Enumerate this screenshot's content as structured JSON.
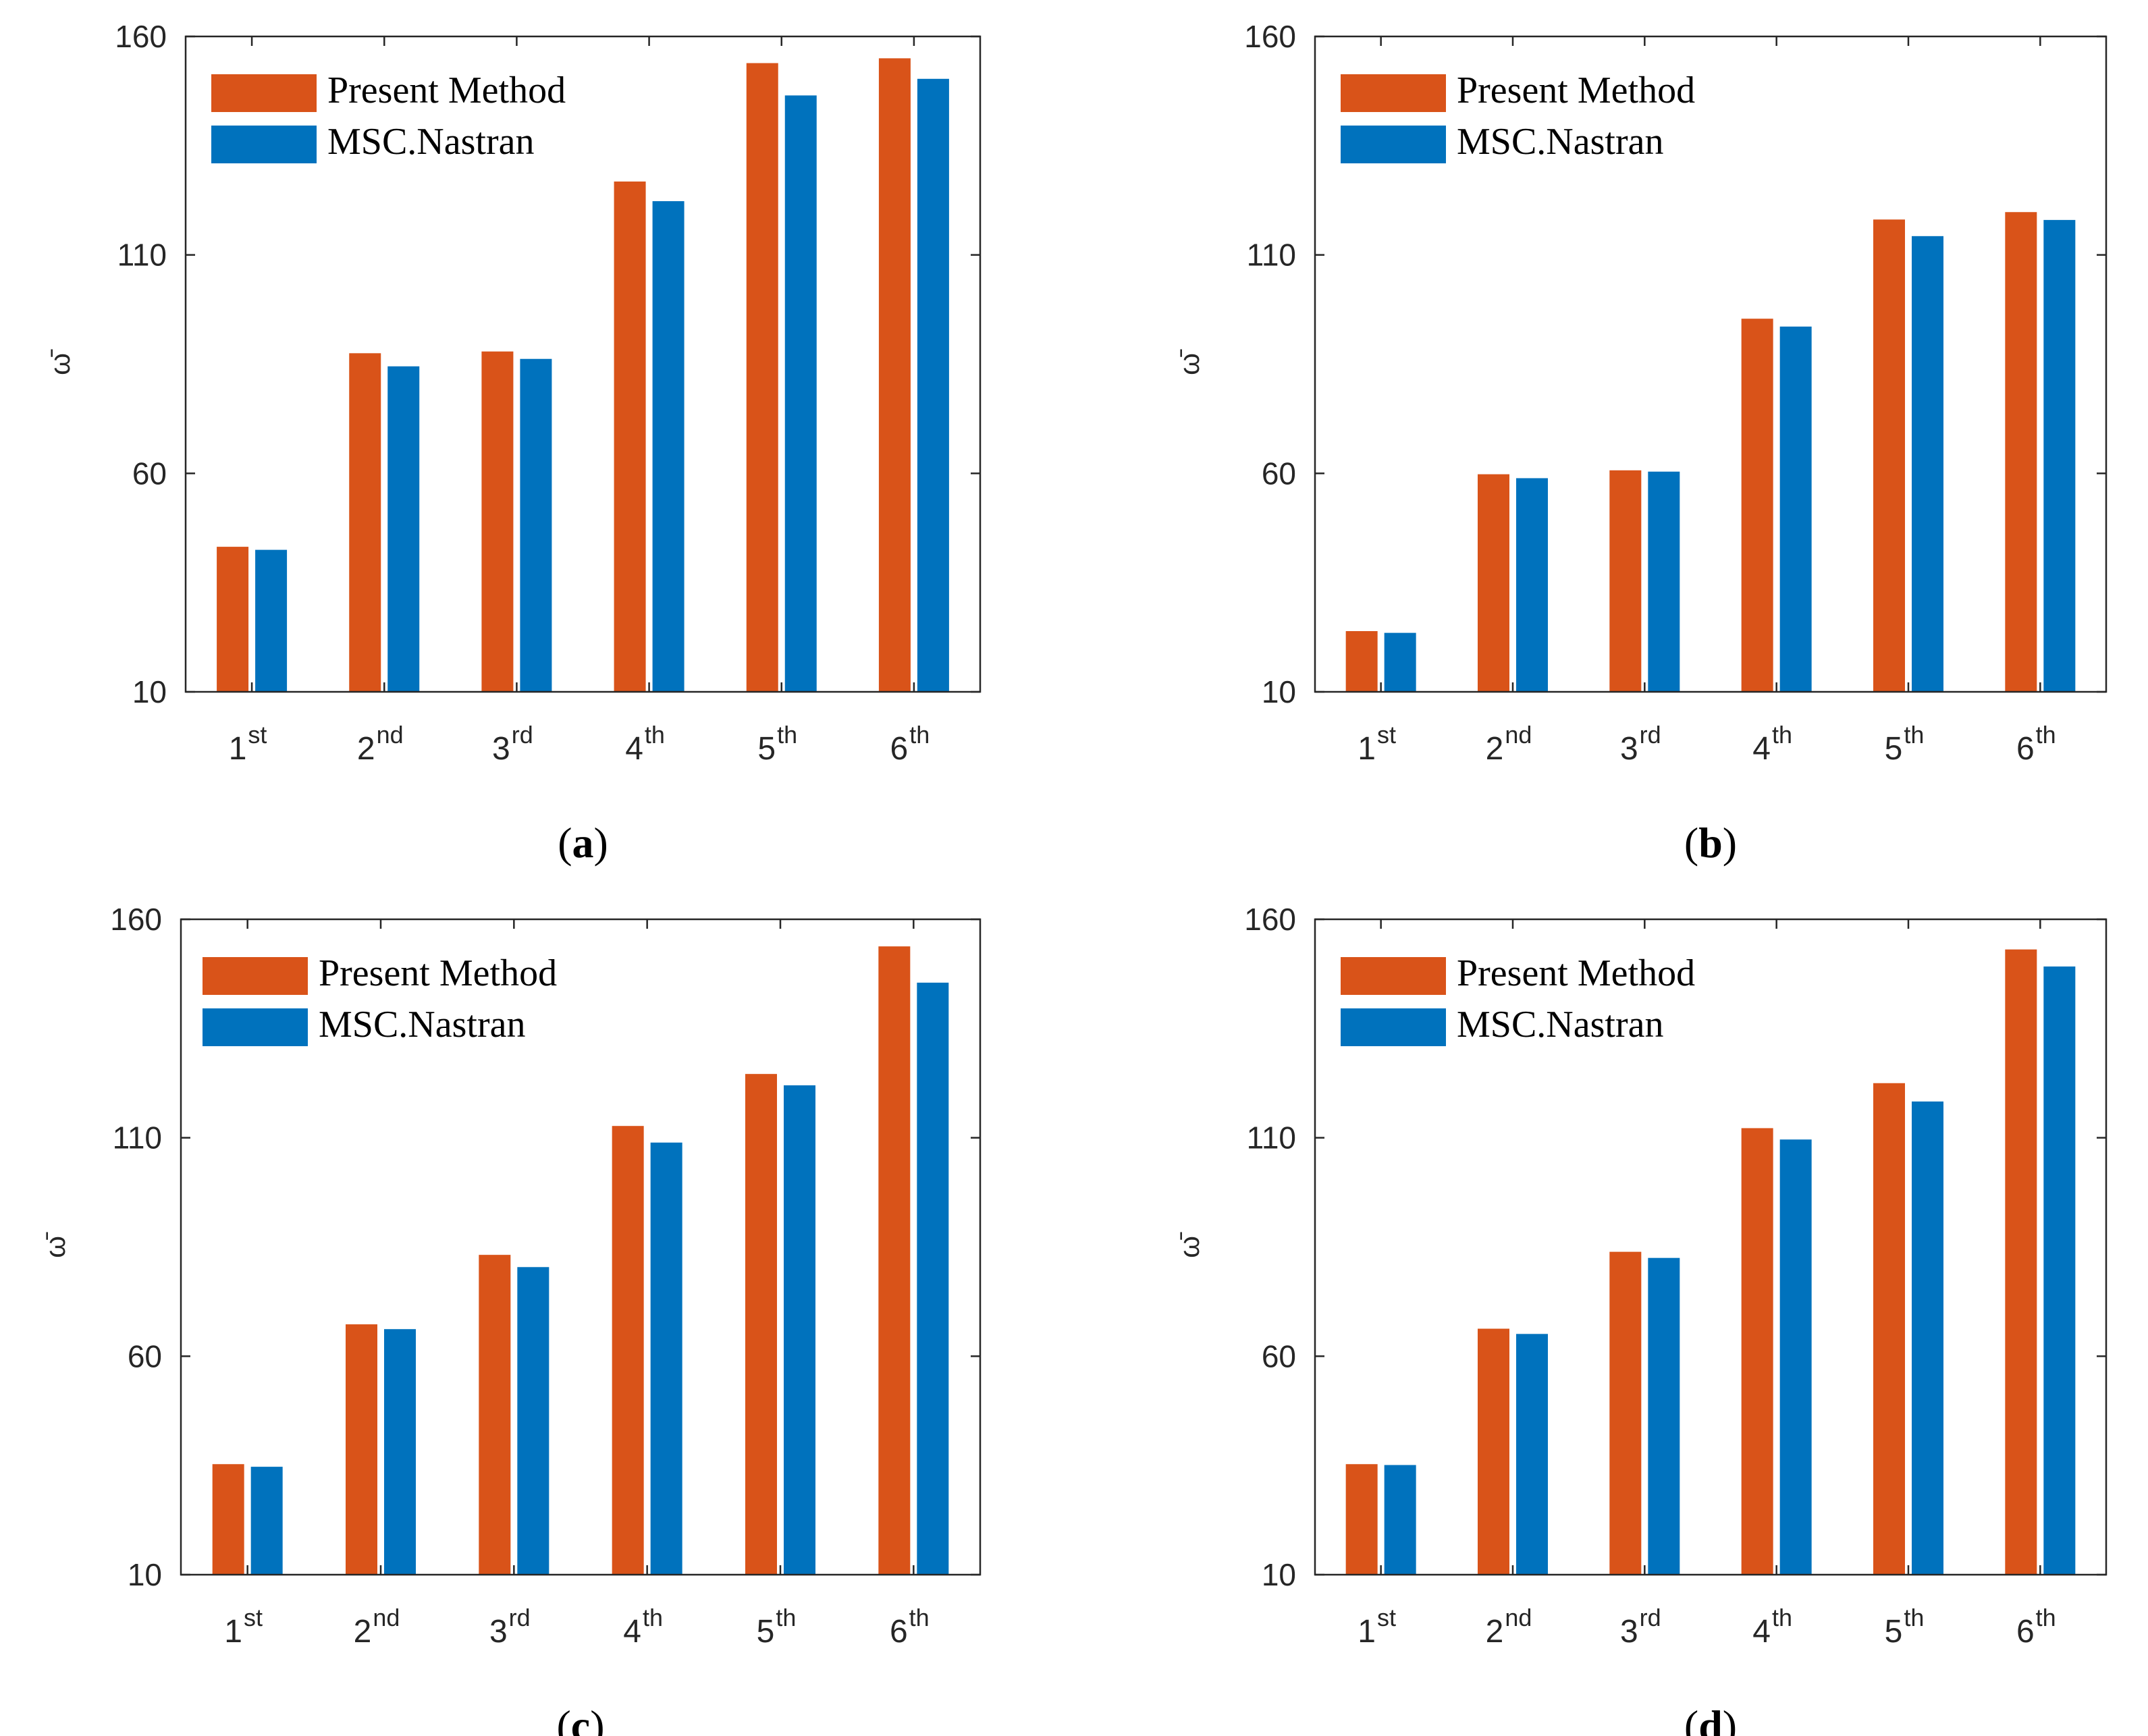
{
  "colors": {
    "present": "#d95319",
    "nastran": "#0072bd",
    "axis": "#262626"
  },
  "chart_data": [
    {
      "id": "a",
      "type": "bar",
      "panel_label": "a",
      "ylabel": "ω̄",
      "ylim": [
        10,
        160
      ],
      "yticks": [
        "10",
        "60",
        "110",
        "160"
      ],
      "categories": [
        {
          "base": "1",
          "sup": "st"
        },
        {
          "base": "2",
          "sup": "nd"
        },
        {
          "base": "3",
          "sup": "rd"
        },
        {
          "base": "4",
          "sup": "th"
        },
        {
          "base": "5",
          "sup": "th"
        },
        {
          "base": "6",
          "sup": "th"
        }
      ],
      "legend": [
        "Present Method",
        "MSC.Nastran"
      ],
      "legend_position": "top-left",
      "series": [
        {
          "name": "Present Method",
          "values": [
            43.2,
            87.5,
            87.9,
            126.8,
            153.9,
            155.0
          ]
        },
        {
          "name": "MSC.Nastran",
          "values": [
            42.5,
            84.5,
            86.2,
            122.3,
            146.5,
            150.3
          ]
        }
      ]
    },
    {
      "id": "b",
      "type": "bar",
      "panel_label": "b",
      "ylabel": "ω̄",
      "ylim": [
        10,
        160
      ],
      "yticks": [
        "10",
        "60",
        "110",
        "160"
      ],
      "categories": [
        {
          "base": "1",
          "sup": "st"
        },
        {
          "base": "2",
          "sup": "nd"
        },
        {
          "base": "3",
          "sup": "rd"
        },
        {
          "base": "4",
          "sup": "th"
        },
        {
          "base": "5",
          "sup": "th"
        },
        {
          "base": "6",
          "sup": "th"
        }
      ],
      "legend": [
        "Present Method",
        "MSC.Nastran"
      ],
      "legend_position": "top-left",
      "series": [
        {
          "name": "Present Method",
          "values": [
            23.9,
            59.8,
            60.7,
            95.4,
            118.1,
            119.8
          ]
        },
        {
          "name": "MSC.Nastran",
          "values": [
            23.5,
            58.9,
            60.4,
            93.6,
            114.3,
            118.0
          ]
        }
      ]
    },
    {
      "id": "c",
      "type": "bar",
      "panel_label": "c",
      "ylabel": "ω̄",
      "ylim": [
        10,
        160
      ],
      "yticks": [
        "10",
        "60",
        "110",
        "160"
      ],
      "categories": [
        {
          "base": "1",
          "sup": "st"
        },
        {
          "base": "2",
          "sup": "nd"
        },
        {
          "base": "3",
          "sup": "rd"
        },
        {
          "base": "4",
          "sup": "th"
        },
        {
          "base": "5",
          "sup": "th"
        },
        {
          "base": "6",
          "sup": "th"
        }
      ],
      "legend": [
        "Present Method",
        "MSC.Nastran"
      ],
      "legend_position": "top-left",
      "series": [
        {
          "name": "Present Method",
          "values": [
            35.3,
            67.3,
            83.2,
            112.7,
            124.6,
            153.8
          ]
        },
        {
          "name": "MSC.Nastran",
          "values": [
            34.7,
            66.2,
            80.4,
            108.9,
            122.0,
            145.5
          ]
        }
      ]
    },
    {
      "id": "d",
      "type": "bar",
      "panel_label": "d",
      "ylabel": "ω̄",
      "ylim": [
        10,
        160
      ],
      "yticks": [
        "10",
        "60",
        "110",
        "160"
      ],
      "categories": [
        {
          "base": "1",
          "sup": "st"
        },
        {
          "base": "2",
          "sup": "nd"
        },
        {
          "base": "3",
          "sup": "rd"
        },
        {
          "base": "4",
          "sup": "th"
        },
        {
          "base": "5",
          "sup": "th"
        },
        {
          "base": "6",
          "sup": "th"
        }
      ],
      "legend": [
        "Present Method",
        "MSC.Nastran"
      ],
      "legend_position": "top-left",
      "series": [
        {
          "name": "Present Method",
          "values": [
            35.3,
            66.3,
            83.9,
            112.2,
            122.5,
            153.1
          ]
        },
        {
          "name": "MSC.Nastran",
          "values": [
            35.1,
            65.1,
            82.5,
            109.6,
            118.3,
            149.2
          ]
        }
      ]
    }
  ]
}
